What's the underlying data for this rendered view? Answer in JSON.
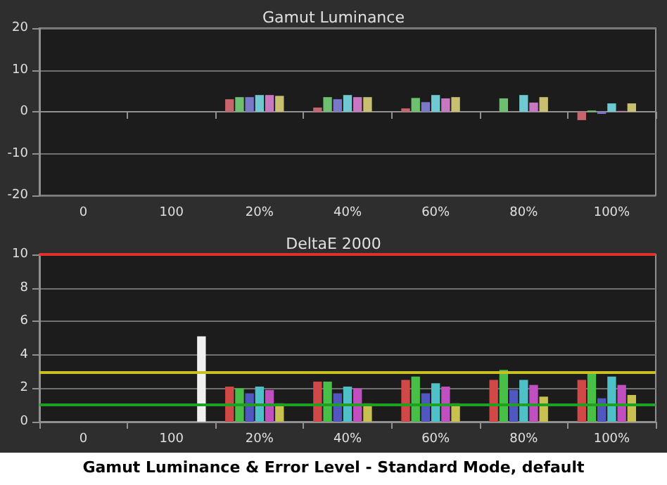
{
  "chart_data": [
    {
      "type": "bar",
      "title": "Gamut Luminance",
      "categories": [
        "0",
        "100",
        "20%",
        "40%",
        "60%",
        "80%",
        "100%"
      ],
      "ylim": [
        -20,
        20
      ],
      "yticks": [
        -20,
        -10,
        0,
        10,
        20
      ],
      "grid": "y",
      "series": [
        {
          "color": "#c8646e",
          "values": [
            null,
            null,
            3,
            1,
            0.8,
            null,
            -2
          ]
        },
        {
          "color": "#6cc070",
          "values": [
            null,
            null,
            3.5,
            3.5,
            3.3,
            3.2,
            0.3
          ]
        },
        {
          "color": "#7a78c8",
          "values": [
            null,
            null,
            3.5,
            3,
            2.3,
            null,
            -0.5
          ]
        },
        {
          "color": "#70c8d0",
          "values": [
            null,
            null,
            4,
            4,
            4,
            4,
            2
          ]
        },
        {
          "color": "#c878c0",
          "values": [
            null,
            null,
            4,
            3.5,
            3.2,
            2.2,
            0.2
          ]
        },
        {
          "color": "#c8c070",
          "values": [
            null,
            null,
            3.8,
            3.5,
            3.5,
            3.5,
            2
          ]
        },
        {
          "color": "#f0f0f0",
          "values": [
            null,
            null,
            null,
            null,
            null,
            null,
            null
          ]
        }
      ]
    },
    {
      "type": "bar",
      "title": "DeltaE 2000",
      "categories": [
        "0",
        "100",
        "20%",
        "40%",
        "60%",
        "80%",
        "100%"
      ],
      "ylim": [
        0,
        10
      ],
      "yticks": [
        0,
        2,
        4,
        6,
        8,
        10
      ],
      "grid": "y",
      "ref_lines": [
        {
          "axis": "y",
          "value": 10,
          "color": "#e03030"
        },
        {
          "axis": "y",
          "value": 3,
          "color": "#c8c020"
        },
        {
          "axis": "y",
          "value": 1,
          "color": "#20a020"
        }
      ],
      "series": [
        {
          "color": "#d04848",
          "values": [
            null,
            null,
            2.1,
            2.4,
            2.5,
            2.5,
            2.5
          ]
        },
        {
          "color": "#48c048",
          "values": [
            null,
            null,
            2.0,
            2.4,
            2.7,
            3.1,
            3.0
          ]
        },
        {
          "color": "#5058c0",
          "values": [
            null,
            null,
            1.7,
            1.7,
            1.7,
            1.9,
            1.4
          ]
        },
        {
          "color": "#50c0c8",
          "values": [
            null,
            null,
            2.1,
            2.1,
            2.3,
            2.5,
            2.7
          ]
        },
        {
          "color": "#c050c0",
          "values": [
            null,
            null,
            1.9,
            2.0,
            2.1,
            2.2,
            2.2
          ]
        },
        {
          "color": "#c8c050",
          "values": [
            null,
            null,
            1.1,
            1.1,
            1.1,
            1.5,
            1.6
          ]
        },
        {
          "color": "#f0f0f0",
          "values": [
            null,
            5.1,
            null,
            null,
            null,
            null,
            null
          ]
        }
      ],
      "annotations": [
        "Gamut Luminance & Error Level - Standard Mode, default"
      ]
    }
  ]
}
